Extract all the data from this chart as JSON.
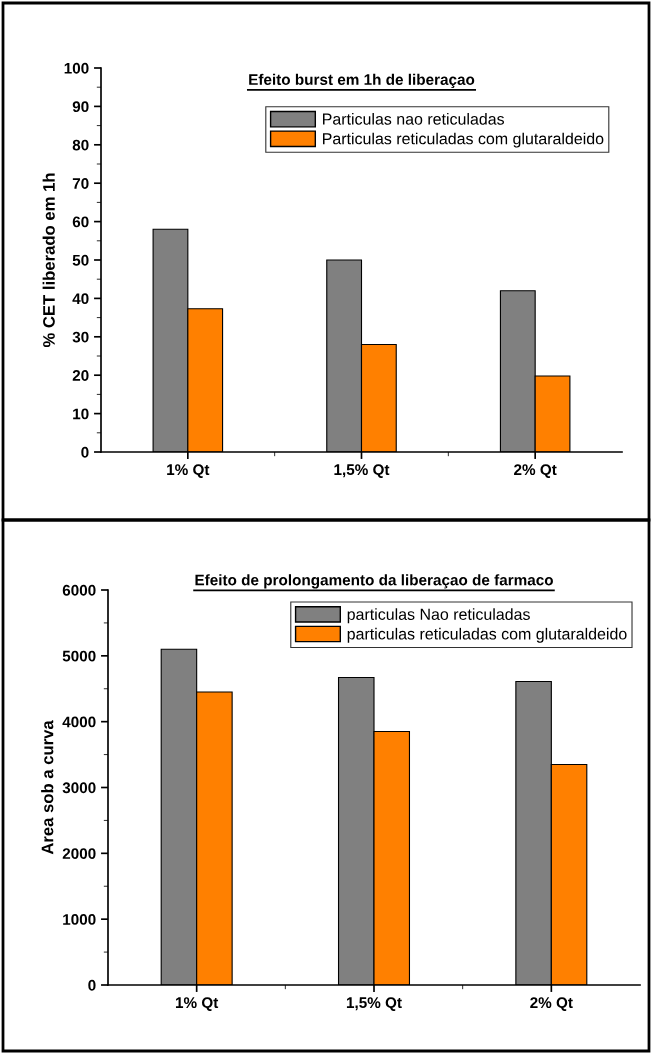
{
  "chart_data": [
    {
      "type": "bar",
      "title": "Efeito burst em 1h de liberaçao",
      "ylabel": "% CET liberado em 1h",
      "categories": [
        "1% Qt",
        "1,5% Qt",
        "2% Qt"
      ],
      "series": [
        {
          "name": "Particulas nao reticuladas",
          "color": "#808080",
          "values": [
            58,
            50,
            42
          ]
        },
        {
          "name": "Particulas reticuladas com glutaraldeido",
          "color": "#ff8000",
          "values": [
            37.3,
            28,
            19.8
          ]
        }
      ],
      "ylim": [
        0,
        100
      ],
      "yticks": [
        0,
        10,
        20,
        30,
        40,
        50,
        60,
        70,
        80,
        90,
        100
      ],
      "legend": "top right",
      "grid": false
    },
    {
      "type": "bar",
      "title": "Efeito de prolongamento da liberaçao de farmaco",
      "ylabel": "Area sob a curva",
      "categories": [
        "1% Qt",
        "1,5% Qt",
        "2% Qt"
      ],
      "series": [
        {
          "name": "particulas Nao reticuladas",
          "color": "#808080",
          "values": [
            5100,
            4670,
            4610
          ]
        },
        {
          "name": "particulas reticuladas com glutaraldeido",
          "color": "#ff8000",
          "values": [
            4450,
            3850,
            3350
          ]
        }
      ],
      "ylim": [
        0,
        6000
      ],
      "yticks": [
        0,
        1000,
        2000,
        3000,
        4000,
        5000,
        6000
      ],
      "legend": "top right",
      "grid": false
    }
  ]
}
